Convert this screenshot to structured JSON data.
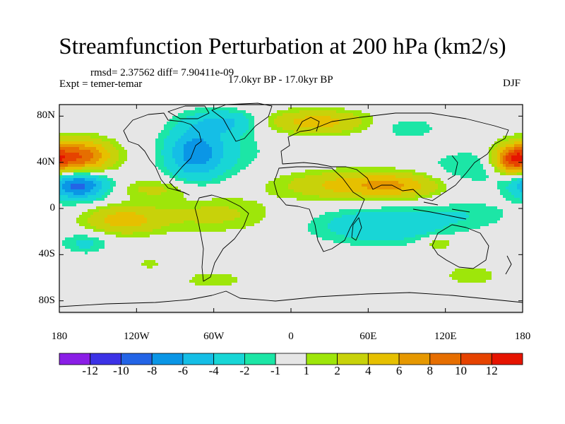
{
  "title": "Streamfunction Perturbation at 200 hPa (km2/s)",
  "stats": "rmsd= 2.37562 diff= 7.90411e-09",
  "experiment": "Expt = temer-temar",
  "period": "17.0kyr BP - 17.0kyr BP",
  "season": "DJF",
  "colors": {
    "neutral": "#e6e6e6",
    "levels": [
      "#8a1ee6",
      "#3c32e6",
      "#2364e6",
      "#0a96e6",
      "#15bee6",
      "#18d6d6",
      "#1ce6a6",
      "#e6e6e6",
      "#9ee60a",
      "#c8d20a",
      "#e6c000",
      "#e69800",
      "#e66e00",
      "#e64300",
      "#e61400"
    ]
  },
  "map": {
    "lat_ticks": [
      "80N",
      "40N",
      "0",
      "40S",
      "80S"
    ],
    "lon_ticks": [
      "180",
      "120W",
      "60W",
      "0",
      "60E",
      "120E",
      "180"
    ],
    "lon_range": [
      -180,
      180
    ],
    "lat_range": [
      -90,
      90
    ]
  },
  "colorbar": {
    "labels": [
      "-12",
      "-10",
      "-8",
      "-6",
      "-4",
      "-2",
      "-1",
      "1",
      "2",
      "4",
      "6",
      "8",
      "10",
      "12"
    ]
  },
  "chart_data": {
    "type": "heatmap",
    "title": "Streamfunction Perturbation at 200 hPa (km2/s)",
    "variable": "streamfunction perturbation",
    "units": "km2/s",
    "level": "200 hPa",
    "season": "DJF",
    "contour_levels": [
      -12,
      -10,
      -8,
      -6,
      -4,
      -2,
      -1,
      1,
      2,
      4,
      6,
      8,
      10,
      12
    ],
    "features": [
      {
        "lon": -165,
        "lat": 45,
        "peak": 10,
        "rx": 25,
        "ry": 14
      },
      {
        "lon": -165,
        "lat": 20,
        "peak": -9,
        "rx": 22,
        "ry": 12
      },
      {
        "lon": -75,
        "lat": 48,
        "peak": -6,
        "rx": 22,
        "ry": 24
      },
      {
        "lon": -50,
        "lat": 75,
        "peak": -4,
        "rx": 25,
        "ry": 10
      },
      {
        "lon": -55,
        "lat": 50,
        "peak": -2,
        "rx": 35,
        "ry": 22
      },
      {
        "lon": 20,
        "lat": 75,
        "peak": 5,
        "rx": 40,
        "ry": 10
      },
      {
        "lon": 90,
        "lat": 70,
        "peak": -1.8,
        "rx": 25,
        "ry": 10
      },
      {
        "lon": 140,
        "lat": 35,
        "peak": -2,
        "rx": 35,
        "ry": 16
      },
      {
        "lon": 172,
        "lat": 42,
        "peak": 9,
        "rx": 14,
        "ry": 12
      },
      {
        "lon": -105,
        "lat": 17,
        "peak": 2.5,
        "rx": 30,
        "ry": 8
      },
      {
        "lon": -130,
        "lat": -10,
        "peak": 5,
        "rx": 30,
        "ry": 12
      },
      {
        "lon": -60,
        "lat": -5,
        "peak": 2.5,
        "rx": 45,
        "ry": 15
      },
      {
        "lon": 50,
        "lat": 20,
        "peak": 5,
        "rx": 55,
        "ry": 12
      },
      {
        "lon": 85,
        "lat": 20,
        "peak": 3,
        "rx": 30,
        "ry": 10
      },
      {
        "lon": 70,
        "lat": -15,
        "peak": -4,
        "rx": 50,
        "ry": 15
      },
      {
        "lon": 140,
        "lat": -5,
        "peak": -1.6,
        "rx": 35,
        "ry": 12
      },
      {
        "lon": -160,
        "lat": -30,
        "peak": -2.5,
        "rx": 18,
        "ry": 9
      },
      {
        "lon": -110,
        "lat": -48,
        "peak": 1.8,
        "rx": 8,
        "ry": 4
      },
      {
        "lon": 115,
        "lat": -30,
        "peak": 2.5,
        "rx": 12,
        "ry": 6
      },
      {
        "lon": 140,
        "lat": -58,
        "peak": 1.8,
        "rx": 22,
        "ry": 9
      },
      {
        "lon": -60,
        "lat": -62,
        "peak": 2,
        "rx": 22,
        "ry": 7
      }
    ]
  }
}
